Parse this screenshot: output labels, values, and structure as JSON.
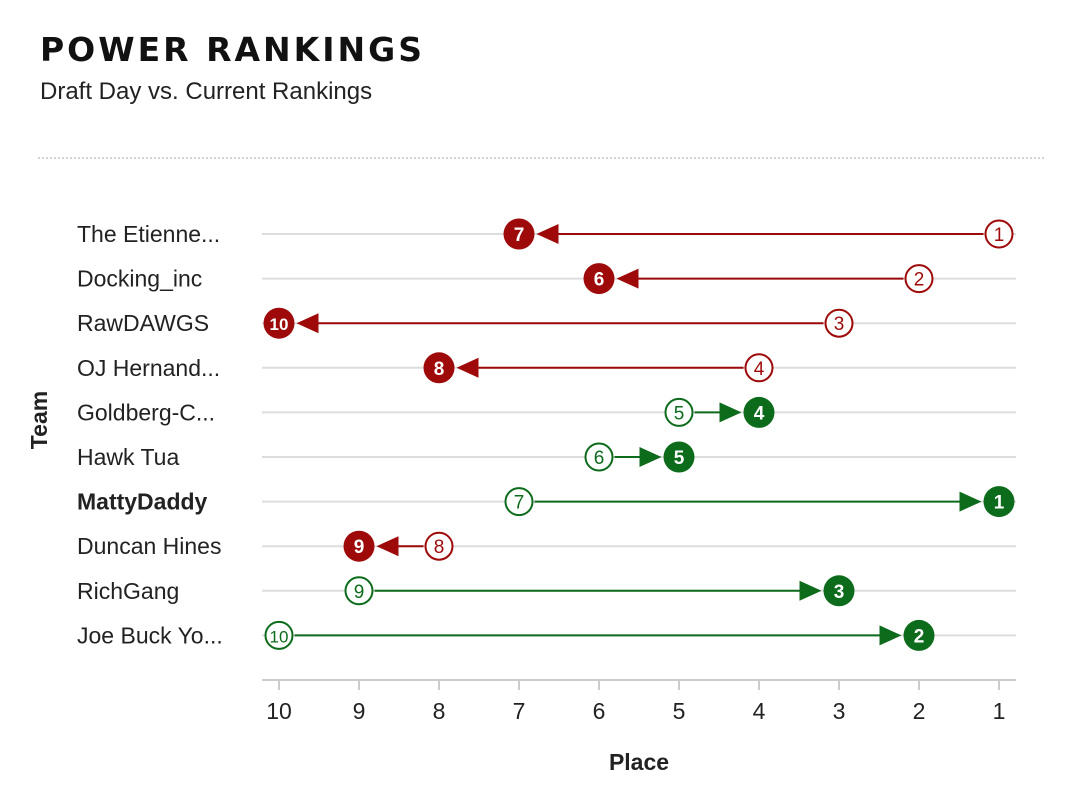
{
  "header": {
    "title": "POWER RANKINGS",
    "subtitle": "Draft Day vs. Current Rankings"
  },
  "chart_data": {
    "type": "dumbbell-arrow",
    "title": "POWER RANKINGS",
    "subtitle": "Draft Day vs. Current Rankings",
    "xlabel": "Place",
    "ylabel": "Team",
    "xlim": [
      10,
      1
    ],
    "x_ticks": [
      "10",
      "9",
      "8",
      "7",
      "6",
      "5",
      "4",
      "3",
      "2",
      "1"
    ],
    "grid": true,
    "colors": {
      "down": "#9e0a0a",
      "up": "#0d6b1c",
      "grid": "#dddddd",
      "axis": "#cccccc"
    },
    "series": [
      {
        "name": "Draft Day",
        "marker": "hollow circle"
      },
      {
        "name": "Current",
        "marker": "filled circle"
      }
    ],
    "rows": [
      {
        "team": "The Etienne...",
        "draft": 1,
        "current": 7,
        "highlight": false
      },
      {
        "team": "Docking_inc",
        "draft": 2,
        "current": 6,
        "highlight": false
      },
      {
        "team": "RawDAWGS",
        "draft": 3,
        "current": 10,
        "highlight": false
      },
      {
        "team": "OJ Hernand...",
        "draft": 4,
        "current": 8,
        "highlight": false
      },
      {
        "team": "Goldberg-C...",
        "draft": 5,
        "current": 4,
        "highlight": false
      },
      {
        "team": "Hawk Tua",
        "draft": 6,
        "current": 5,
        "highlight": false
      },
      {
        "team": "MattyDaddy",
        "draft": 7,
        "current": 1,
        "highlight": true
      },
      {
        "team": "Duncan Hines",
        "draft": 8,
        "current": 9,
        "highlight": false
      },
      {
        "team": "RichGang",
        "draft": 9,
        "current": 3,
        "highlight": false
      },
      {
        "team": "Joe Buck Yo...",
        "draft": 10,
        "current": 2,
        "highlight": false
      }
    ]
  }
}
